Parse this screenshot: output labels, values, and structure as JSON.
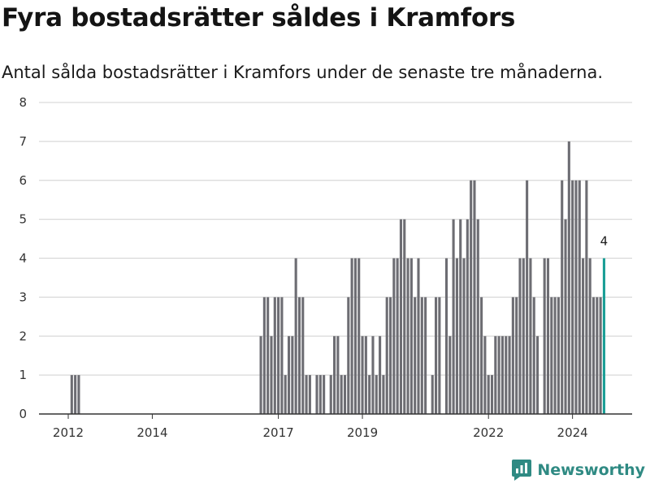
{
  "header": {
    "title": "Fyra bostadsrätter såldes i Kramfors",
    "subtitle": "Antal sålda bostadsrätter i Kramfors under de senaste tre månaderna."
  },
  "brand": {
    "name": "Newsworthy",
    "color": "#2f8a83"
  },
  "colors": {
    "bar": "#6d6d73",
    "highlight": "#1a9e96",
    "grid": "#d9d9d9",
    "axis": "#333333"
  },
  "chart_data": {
    "type": "bar",
    "x_axis_type": "date",
    "y_ticks": [
      0,
      1,
      2,
      3,
      4,
      5,
      6,
      7,
      8
    ],
    "ylim": [
      0,
      8
    ],
    "x_tick_labels": [
      "2012",
      "2014",
      "2017",
      "2019",
      "2022",
      "2024"
    ],
    "x_ticks": [
      "2012-01",
      "2014-01",
      "2017-01",
      "2019-01",
      "2022-01",
      "2024-01"
    ],
    "grid": true,
    "series": [
      {
        "x": [
          "2012-02",
          "2012-03",
          "2012-04",
          "2016-08",
          "2016-09",
          "2016-10",
          "2016-11",
          "2016-12",
          "2017-01",
          "2017-02",
          "2017-03",
          "2017-04",
          "2017-05",
          "2017-06",
          "2017-07",
          "2017-08",
          "2017-09",
          "2017-10",
          "2017-11",
          "2017-12",
          "2018-01",
          "2018-02",
          "2018-03",
          "2018-04",
          "2018-05",
          "2018-06",
          "2018-07",
          "2018-08",
          "2018-09",
          "2018-10",
          "2018-11",
          "2018-12",
          "2019-01",
          "2019-02",
          "2019-03",
          "2019-04",
          "2019-05",
          "2019-06",
          "2019-07",
          "2019-08",
          "2019-09",
          "2019-10",
          "2019-11",
          "2019-12",
          "2020-01",
          "2020-02",
          "2020-03",
          "2020-04",
          "2020-05",
          "2020-06",
          "2020-07",
          "2020-08",
          "2020-09",
          "2020-10",
          "2020-11",
          "2021-01",
          "2021-02",
          "2021-03",
          "2021-04",
          "2021-05",
          "2021-06",
          "2021-07",
          "2021-08",
          "2021-09",
          "2021-10",
          "2021-11",
          "2021-12",
          "2022-01",
          "2022-02",
          "2022-03",
          "2022-04",
          "2022-05",
          "2022-06",
          "2022-07",
          "2022-08",
          "2022-09",
          "2022-10",
          "2022-11",
          "2022-12",
          "2023-01",
          "2023-02",
          "2023-03",
          "2023-05",
          "2023-06",
          "2023-07",
          "2023-08",
          "2023-09",
          "2023-10",
          "2023-11",
          "2023-12",
          "2024-01",
          "2024-02",
          "2024-03",
          "2024-04",
          "2024-05",
          "2024-06",
          "2024-07",
          "2024-08",
          "2024-09",
          "2024-10"
        ],
        "values": [
          1,
          1,
          1,
          2,
          3,
          3,
          2,
          3,
          3,
          3,
          1,
          2,
          2,
          4,
          3,
          3,
          1,
          1,
          0,
          1,
          1,
          1,
          0,
          1,
          2,
          2,
          1,
          1,
          3,
          4,
          4,
          4,
          2,
          2,
          1,
          2,
          1,
          2,
          1,
          3,
          3,
          4,
          4,
          5,
          5,
          4,
          4,
          3,
          4,
          3,
          3,
          0,
          1,
          3,
          3,
          4,
          2,
          5,
          4,
          5,
          4,
          5,
          6,
          6,
          5,
          3,
          2,
          1,
          1,
          2,
          2,
          2,
          2,
          2,
          3,
          3,
          4,
          4,
          6,
          4,
          3,
          2,
          4,
          4,
          3,
          3,
          3,
          6,
          5,
          7,
          6,
          6,
          6,
          4,
          6,
          4,
          3,
          3,
          3,
          4
        ]
      }
    ],
    "annotations": [
      {
        "x": "2024-10",
        "text": "4"
      }
    ]
  }
}
